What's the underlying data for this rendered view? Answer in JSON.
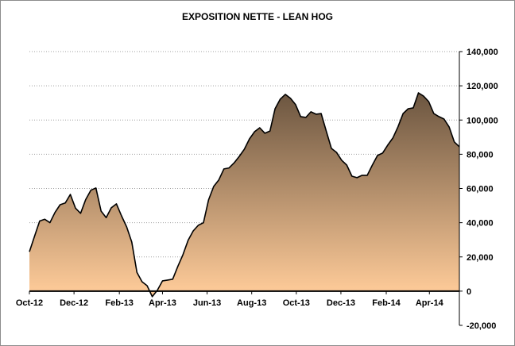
{
  "chart_data": {
    "type": "area",
    "title": "EXPOSITION NETTE - LEAN HOG",
    "xlabel": "",
    "ylabel": "",
    "y_axis_position": "right",
    "ylim": [
      -20000,
      140000
    ],
    "yticks": [
      -20000,
      0,
      20000,
      40000,
      60000,
      80000,
      100000,
      120000,
      140000
    ],
    "ytick_labels": [
      "-20,000",
      "0",
      "20,000",
      "40,000",
      "60,000",
      "80,000",
      "100,000",
      "120,000",
      "140,000"
    ],
    "xticks": [
      "2012-10-01",
      "2012-12-01",
      "2013-02-01",
      "2013-04-01",
      "2013-06-01",
      "2013-08-01",
      "2013-10-01",
      "2013-12-01",
      "2014-02-01",
      "2014-04-01"
    ],
    "xtick_labels": [
      "Oct-12",
      "Dec-12",
      "Feb-13",
      "Apr-13",
      "Jun-13",
      "Aug-13",
      "Oct-13",
      "Dec-13",
      "Feb-14",
      "Apr-14"
    ],
    "grid": "horizontal dotted",
    "legend": "none",
    "colors": {
      "fill_top": "#6b5540",
      "fill_bottom": "#fdca98",
      "line": "#000000",
      "grid": "#a0a0a0"
    },
    "x": [
      "2012-10-01",
      "2012-10-08",
      "2012-10-15",
      "2012-10-22",
      "2012-10-29",
      "2012-11-05",
      "2012-11-12",
      "2012-11-19",
      "2012-11-26",
      "2012-12-03",
      "2012-12-10",
      "2012-12-17",
      "2012-12-24",
      "2012-12-31",
      "2013-01-07",
      "2013-01-14",
      "2013-01-21",
      "2013-01-28",
      "2013-02-04",
      "2013-02-11",
      "2013-02-18",
      "2013-02-25",
      "2013-03-04",
      "2013-03-11",
      "2013-03-18",
      "2013-03-25",
      "2013-04-01",
      "2013-04-08",
      "2013-04-15",
      "2013-04-22",
      "2013-04-29",
      "2013-05-06",
      "2013-05-13",
      "2013-05-20",
      "2013-05-27",
      "2013-06-03",
      "2013-06-10",
      "2013-06-17",
      "2013-06-24",
      "2013-07-01",
      "2013-07-08",
      "2013-07-15",
      "2013-07-22",
      "2013-07-29",
      "2013-08-05",
      "2013-08-12",
      "2013-08-19",
      "2013-08-26",
      "2013-09-02",
      "2013-09-09",
      "2013-09-16",
      "2013-09-23",
      "2013-09-30",
      "2013-10-07",
      "2013-10-14",
      "2013-10-21",
      "2013-10-28",
      "2013-11-04",
      "2013-11-11",
      "2013-11-18",
      "2013-11-25",
      "2013-12-02",
      "2013-12-09",
      "2013-12-16",
      "2013-12-23",
      "2013-12-30",
      "2014-01-06",
      "2014-01-13",
      "2014-01-20",
      "2014-01-27",
      "2014-02-03",
      "2014-02-10",
      "2014-02-17",
      "2014-02-24",
      "2014-03-03",
      "2014-03-10",
      "2014-03-17",
      "2014-03-24",
      "2014-03-31",
      "2014-04-07",
      "2014-04-14",
      "2014-04-21",
      "2014-04-28",
      "2014-05-05",
      "2014-05-12"
    ],
    "values": [
      23000,
      32000,
      41000,
      42000,
      40000,
      46000,
      50500,
      51500,
      56500,
      48500,
      45500,
      53500,
      59000,
      60300,
      46800,
      43000,
      48700,
      51000,
      44000,
      37500,
      28700,
      11000,
      5500,
      3200,
      -3200,
      500,
      6000,
      6500,
      7000,
      14500,
      21300,
      29700,
      35200,
      38500,
      40000,
      53300,
      61200,
      65000,
      71400,
      72000,
      75000,
      78800,
      83000,
      89000,
      93200,
      95500,
      92300,
      93600,
      106600,
      112200,
      115000,
      112700,
      109000,
      102000,
      101500,
      104800,
      103400,
      103800,
      93600,
      83400,
      81100,
      76500,
      73700,
      67200,
      66300,
      67700,
      67700,
      73700,
      79300,
      80700,
      85300,
      89500,
      96000,
      103800,
      106600,
      107100,
      115900,
      114000,
      110800,
      103800,
      102000,
      100600,
      96000,
      87200,
      84400
    ]
  }
}
